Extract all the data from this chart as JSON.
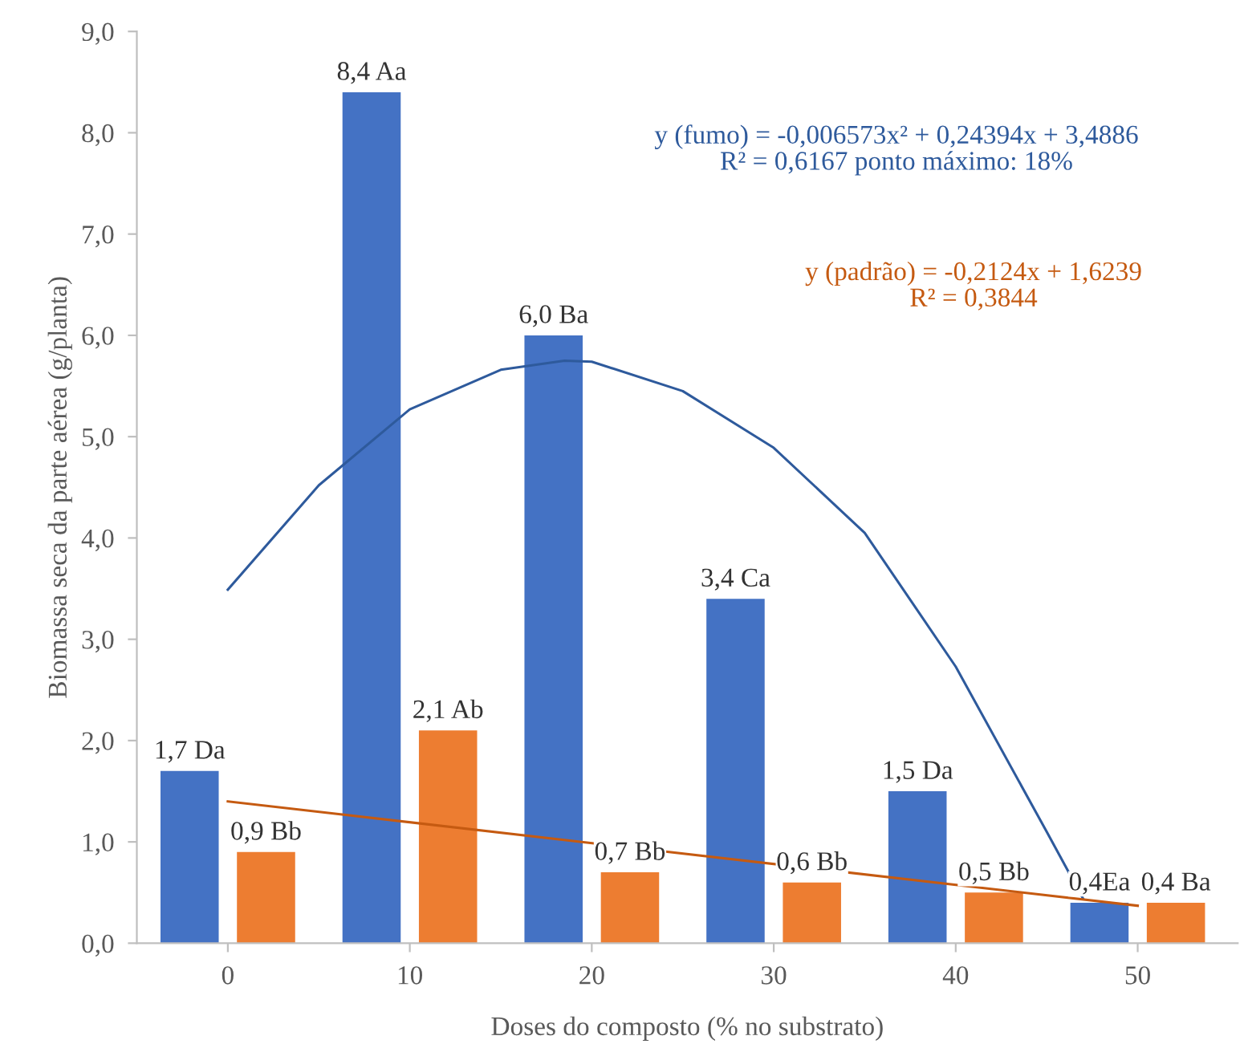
{
  "chart_data": {
    "type": "bar",
    "xlabel": "Doses do composto (% no substrato)",
    "ylabel": "Biomassa seca da parte aérea (g/planta)",
    "x": [
      0,
      10,
      20,
      30,
      40,
      50
    ],
    "series": [
      {
        "color": "#4472c4",
        "values": [
          1.7,
          8.4,
          6.0,
          3.4,
          1.5,
          0.4
        ],
        "value_labels": [
          "1,7 Da",
          "8,4 Aa",
          "6,0 Ba",
          "3,4 Ca",
          "1,5 Da",
          "0,4Ea"
        ]
      },
      {
        "color": "#ed7d31",
        "values": [
          0.9,
          2.1,
          0.7,
          0.6,
          0.5,
          0.4
        ],
        "value_labels": [
          "0,9 Bb",
          "2,1 Ab",
          "0,7 Bb",
          "0,6 Bb",
          "0,5 Bb",
          "0,4 Ba"
        ]
      },
      {
        "type": "line",
        "color": "#2e5a9c",
        "x": [
          0,
          5,
          10,
          15,
          18.5,
          20,
          25,
          30,
          35,
          40,
          45,
          47
        ],
        "values": [
          3.49,
          4.52,
          5.27,
          5.66,
          5.75,
          5.74,
          5.45,
          4.89,
          4.05,
          2.73,
          1.1,
          0.44
        ]
      },
      {
        "type": "line",
        "color": "#c55a11",
        "x": [
          0,
          50
        ],
        "values": [
          1.4,
          0.37
        ]
      }
    ],
    "annotations": [
      "y (fumo) = -0,006573x² + 0,24394x + 3,4886\nR² = 0,6167 ponto máximo: 18%",
      "y (padrão) = -0,2124x + 1,6239\nR² = 0,3844"
    ],
    "xlim": [
      -5,
      55.5
    ],
    "xticks": [
      0,
      10,
      20,
      30,
      40,
      50
    ],
    "ylim": [
      0,
      9
    ],
    "yticks": [
      {
        "value": 0,
        "label": "0,0"
      },
      {
        "value": 1,
        "label": "1,0"
      },
      {
        "value": 2,
        "label": "2,0"
      },
      {
        "value": 3,
        "label": "3,0"
      },
      {
        "value": 4,
        "label": "4,0"
      },
      {
        "value": 5,
        "label": "5,0"
      },
      {
        "value": 6,
        "label": "6,0"
      },
      {
        "value": 7,
        "label": "7,0"
      },
      {
        "value": 8,
        "label": "8,0"
      },
      {
        "value": 9,
        "label": "9,0"
      }
    ],
    "grid": false,
    "legend": false
  }
}
